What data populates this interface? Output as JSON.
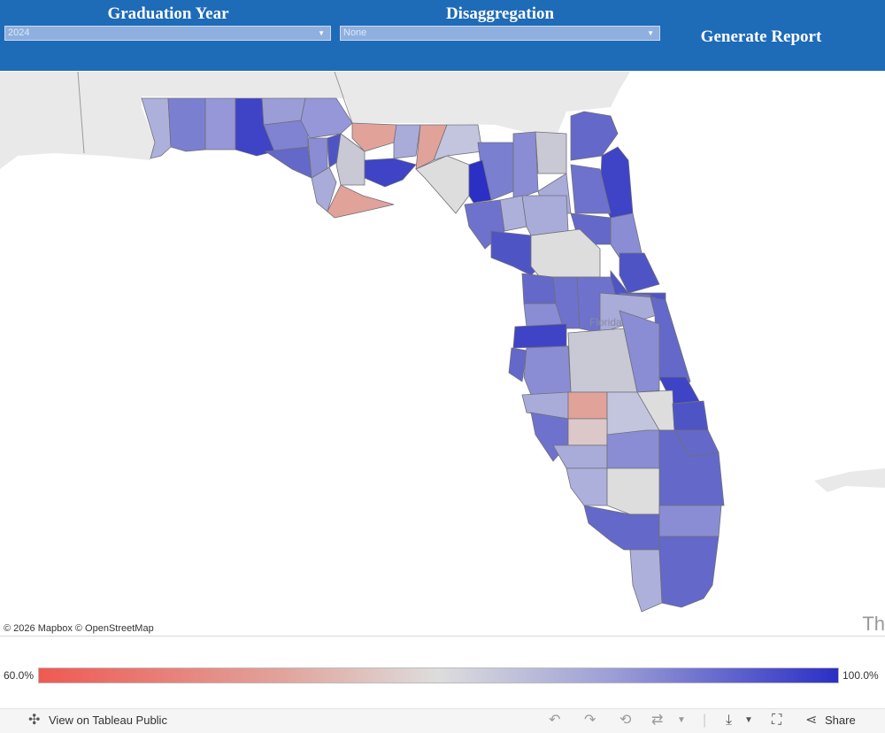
{
  "header": {
    "graduation_year_title": "Graduation Year",
    "graduation_year_value": "2024",
    "disaggregation_title": "Disaggregation",
    "disaggregation_value": "None",
    "generate_report_label": "Generate Report"
  },
  "map": {
    "attribution": "© 2026 Mapbox  © OpenStreetMap",
    "state_label": "Florida",
    "corner_label": "Th",
    "colors": {
      "water": "#ffffff",
      "land": "#e9e9e9",
      "low": "#ee5a52",
      "mid": "#dddddd",
      "high": "#2b2fc4"
    }
  },
  "legend": {
    "min_label": "60.0%",
    "max_label": "100.0%"
  },
  "toolbar": {
    "view_label": "View on Tableau Public",
    "share_label": "Share"
  }
}
